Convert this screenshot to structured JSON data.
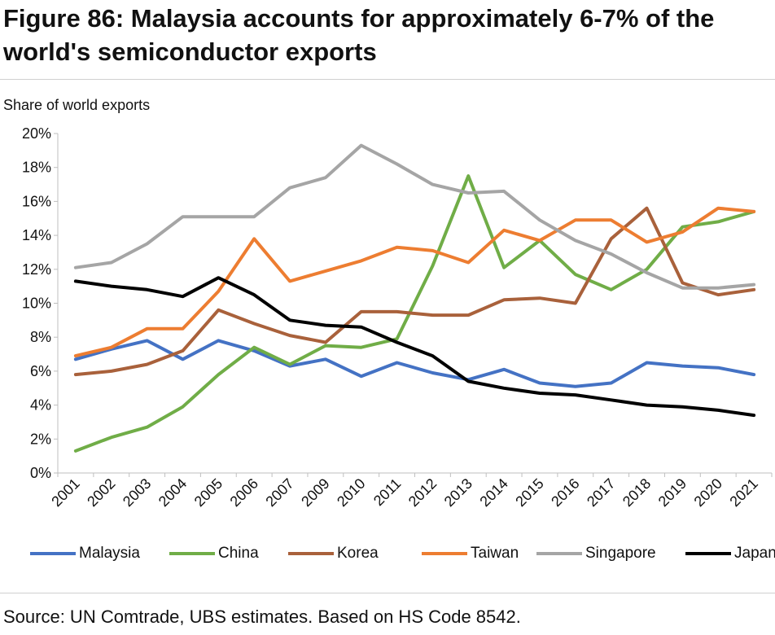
{
  "header": {
    "title": "Figure 86: Malaysia accounts for approximately 6-7% of the world's semiconductor exports"
  },
  "footer": {
    "source": "Source: UN Comtrade, UBS estimates. Based on HS Code 8542."
  },
  "chart_data": {
    "type": "line",
    "ylabel": "Share of world exports",
    "xlabel": "",
    "ylim": [
      0,
      20
    ],
    "y_unit": "%",
    "y_ticks": [
      "0%",
      "2%",
      "4%",
      "6%",
      "8%",
      "10%",
      "12%",
      "14%",
      "16%",
      "18%",
      "20%"
    ],
    "categories": [
      "2001",
      "2002",
      "2003",
      "2004",
      "2005",
      "2006",
      "2007",
      "2009",
      "2010",
      "2011",
      "2012",
      "2013",
      "2014",
      "2015",
      "2016",
      "2017",
      "2018",
      "2019",
      "2020",
      "2021"
    ],
    "legend_position": "bottom",
    "grid": false,
    "series": [
      {
        "name": "Malaysia",
        "color": "#4472C4",
        "values": [
          6.7,
          7.3,
          7.8,
          6.7,
          7.8,
          7.2,
          6.3,
          6.7,
          5.7,
          6.5,
          5.9,
          5.5,
          6.1,
          5.3,
          5.1,
          5.3,
          6.5,
          6.3,
          6.2,
          5.8
        ]
      },
      {
        "name": "China",
        "color": "#70AD47",
        "values": [
          1.3,
          2.1,
          2.7,
          3.9,
          5.8,
          7.4,
          6.4,
          7.5,
          7.4,
          7.9,
          12.2,
          17.5,
          12.1,
          13.7,
          11.7,
          10.8,
          12.0,
          14.5,
          14.8,
          15.4
        ]
      },
      {
        "name": "Korea",
        "color": "#A9613B",
        "values": [
          5.8,
          6.0,
          6.4,
          7.2,
          9.6,
          8.8,
          8.1,
          7.7,
          9.5,
          9.5,
          9.3,
          9.3,
          10.2,
          10.3,
          10.0,
          13.8,
          15.6,
          11.2,
          10.5,
          10.8
        ]
      },
      {
        "name": "Taiwan",
        "color": "#ED7D31",
        "values": [
          6.9,
          7.4,
          8.5,
          8.5,
          10.7,
          13.8,
          11.3,
          11.9,
          12.5,
          13.3,
          13.1,
          12.4,
          14.3,
          13.7,
          14.9,
          14.9,
          13.6,
          14.2,
          15.6,
          15.4
        ]
      },
      {
        "name": "Singapore",
        "color": "#A5A5A5",
        "values": [
          12.1,
          12.4,
          13.5,
          15.1,
          15.1,
          15.1,
          16.8,
          17.4,
          19.3,
          18.2,
          17.0,
          16.5,
          16.6,
          14.9,
          13.7,
          12.9,
          11.8,
          10.9,
          10.9,
          11.1
        ]
      },
      {
        "name": "Japan",
        "color": "#000000",
        "values": [
          11.3,
          11.0,
          10.8,
          10.4,
          11.5,
          10.5,
          9.0,
          8.7,
          8.6,
          7.7,
          6.9,
          5.4,
          5.0,
          4.7,
          4.6,
          4.3,
          4.0,
          3.9,
          3.7,
          3.4
        ]
      }
    ]
  }
}
